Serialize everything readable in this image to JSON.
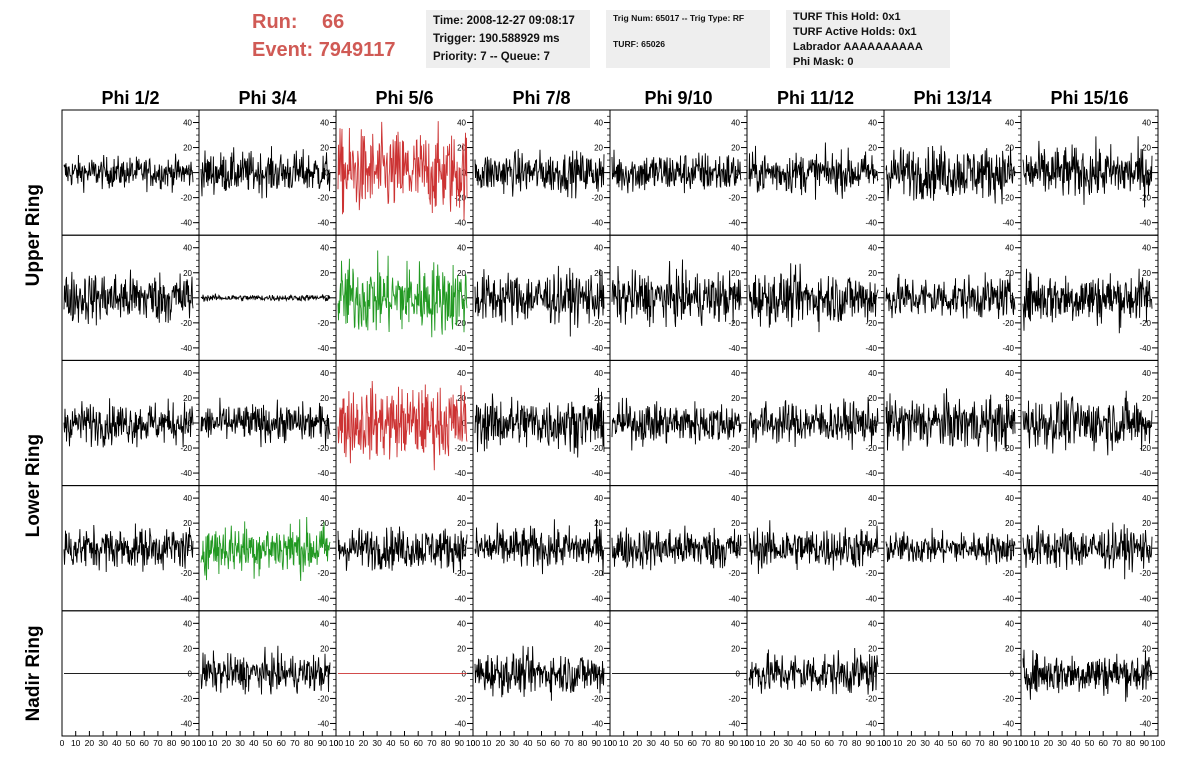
{
  "header": {
    "run_label": "Run:",
    "run_value": "66",
    "event_label": "Event:",
    "event_value": "7949117",
    "time": "Time: 2008-12-27 09:08:17",
    "trigger": "Trigger: 190.588929 ms",
    "priority": "Priority: 7 -- Queue: 7",
    "trig_num": "Trig Num: 65017 -- Trig Type: RF",
    "turf": "TURF: 65026",
    "turf_this_hold": "TURF This Hold: 0x1",
    "turf_active_holds": "TURF Active Holds: 0x1",
    "labrador": "Labrador AAAAAAAAAA",
    "phi_mask": "Phi Mask: 0"
  },
  "chart_data": {
    "type": "line",
    "columns": [
      "Phi 1/2",
      "Phi 3/4",
      "Phi 5/6",
      "Phi 7/8",
      "Phi 9/10",
      "Phi 11/12",
      "Phi 13/14",
      "Phi 15/16"
    ],
    "rings": [
      "Upper Ring",
      "Lower Ring",
      "Nadir Ring"
    ],
    "rows": 5,
    "x_ticks": [
      "0",
      "10",
      "20",
      "30",
      "40",
      "50",
      "60",
      "70",
      "80",
      "90",
      "100"
    ],
    "y_ticks": [
      "40",
      "20",
      "0",
      "-20",
      "-40"
    ],
    "xlim": [
      0,
      100
    ],
    "ylim": [
      -50,
      50
    ],
    "colors": {
      "default": "#000000",
      "red": "#cc3333",
      "green": "#229922"
    },
    "panels": [
      [
        "15",
        "20",
        "red:40",
        "20",
        "20",
        "20",
        "25",
        "25"
      ],
      [
        "25",
        "3",
        "green:35",
        "25",
        "25",
        "25",
        "20",
        "25"
      ],
      [
        "20",
        "18",
        "red:35",
        "25",
        "20",
        "20",
        "25",
        "25"
      ],
      [
        "20",
        "green:25",
        "20",
        "20",
        "20",
        "20",
        "15",
        "20"
      ],
      [
        "0",
        "18",
        "red:0",
        "20",
        "0",
        "20",
        "0",
        "20"
      ]
    ]
  }
}
